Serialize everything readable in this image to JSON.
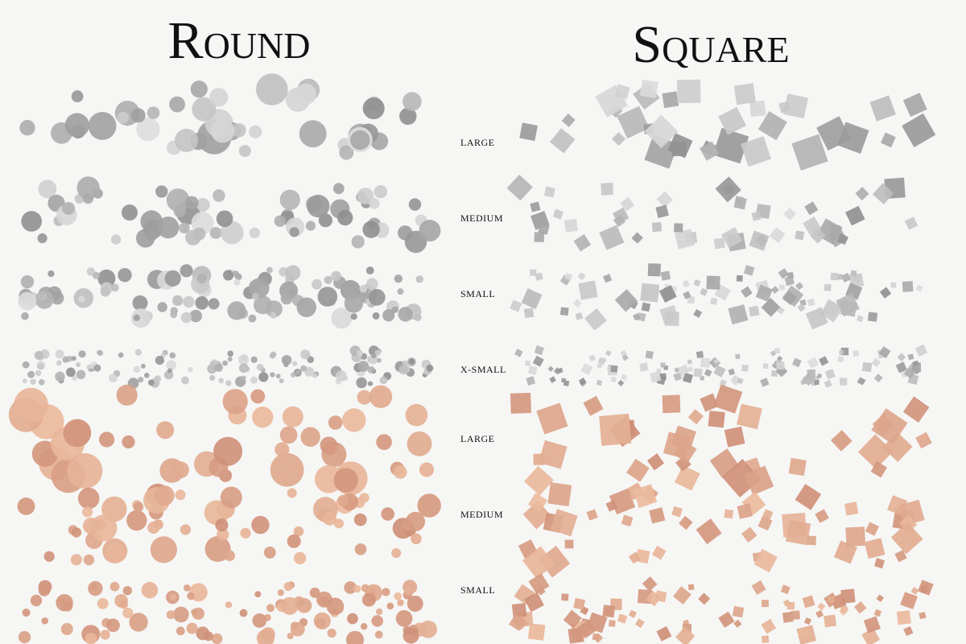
{
  "titles": {
    "left": "Round",
    "right": "Square"
  },
  "rows": [
    {
      "label": "LARGE"
    },
    {
      "label": "MEDIUM"
    },
    {
      "label": "SMALL"
    },
    {
      "label": "X-SMALL"
    },
    {
      "label": "LARGE"
    },
    {
      "label": "MEDIUM"
    },
    {
      "label": "SMALL"
    }
  ]
}
